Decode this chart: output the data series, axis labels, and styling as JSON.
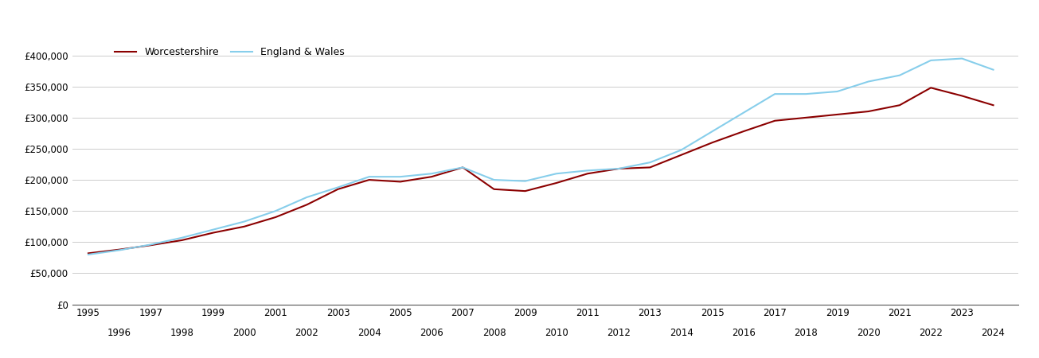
{
  "worcestershire": {
    "years": [
      1995,
      1996,
      1997,
      1998,
      1999,
      2000,
      2001,
      2002,
      2003,
      2004,
      2005,
      2006,
      2007,
      2008,
      2009,
      2010,
      2011,
      2012,
      2013,
      2014,
      2015,
      2016,
      2017,
      2018,
      2019,
      2020,
      2021,
      2022,
      2023,
      2024
    ],
    "values": [
      82000,
      88000,
      95000,
      103000,
      115000,
      125000,
      140000,
      160000,
      185000,
      200000,
      197000,
      205000,
      220000,
      185000,
      182000,
      195000,
      210000,
      218000,
      220000,
      240000,
      260000,
      278000,
      295000,
      300000,
      305000,
      310000,
      320000,
      348000,
      335000,
      320000
    ]
  },
  "england_wales": {
    "years": [
      1995,
      1996,
      1997,
      1998,
      1999,
      2000,
      2001,
      2002,
      2003,
      2004,
      2005,
      2006,
      2007,
      2008,
      2009,
      2010,
      2011,
      2012,
      2013,
      2014,
      2015,
      2016,
      2017,
      2018,
      2019,
      2020,
      2021,
      2022,
      2023,
      2024
    ],
    "values": [
      80000,
      87000,
      96000,
      107000,
      120000,
      133000,
      150000,
      172000,
      188000,
      205000,
      205000,
      210000,
      220000,
      200000,
      198000,
      210000,
      215000,
      218000,
      228000,
      248000,
      278000,
      308000,
      338000,
      338000,
      342000,
      358000,
      368000,
      392000,
      395000,
      377000
    ]
  },
  "worcestershire_color": "#8B0000",
  "england_wales_color": "#87CEEB",
  "worcestershire_label": "Worcestershire",
  "england_wales_label": "England & Wales",
  "ylim": [
    0,
    420000
  ],
  "yticks": [
    0,
    50000,
    100000,
    150000,
    200000,
    250000,
    300000,
    350000,
    400000
  ],
  "xlim": [
    1994.5,
    2024.8
  ],
  "background_color": "#ffffff",
  "grid_color": "#cccccc",
  "line_width": 1.5,
  "odd_years": [
    1995,
    1997,
    1999,
    2001,
    2003,
    2005,
    2007,
    2009,
    2011,
    2013,
    2015,
    2017,
    2019,
    2021,
    2023
  ],
  "even_years": [
    1996,
    1998,
    2000,
    2002,
    2004,
    2006,
    2008,
    2010,
    2012,
    2014,
    2016,
    2018,
    2020,
    2022,
    2024
  ],
  "legend_fontsize": 9,
  "tick_fontsize": 8.5
}
